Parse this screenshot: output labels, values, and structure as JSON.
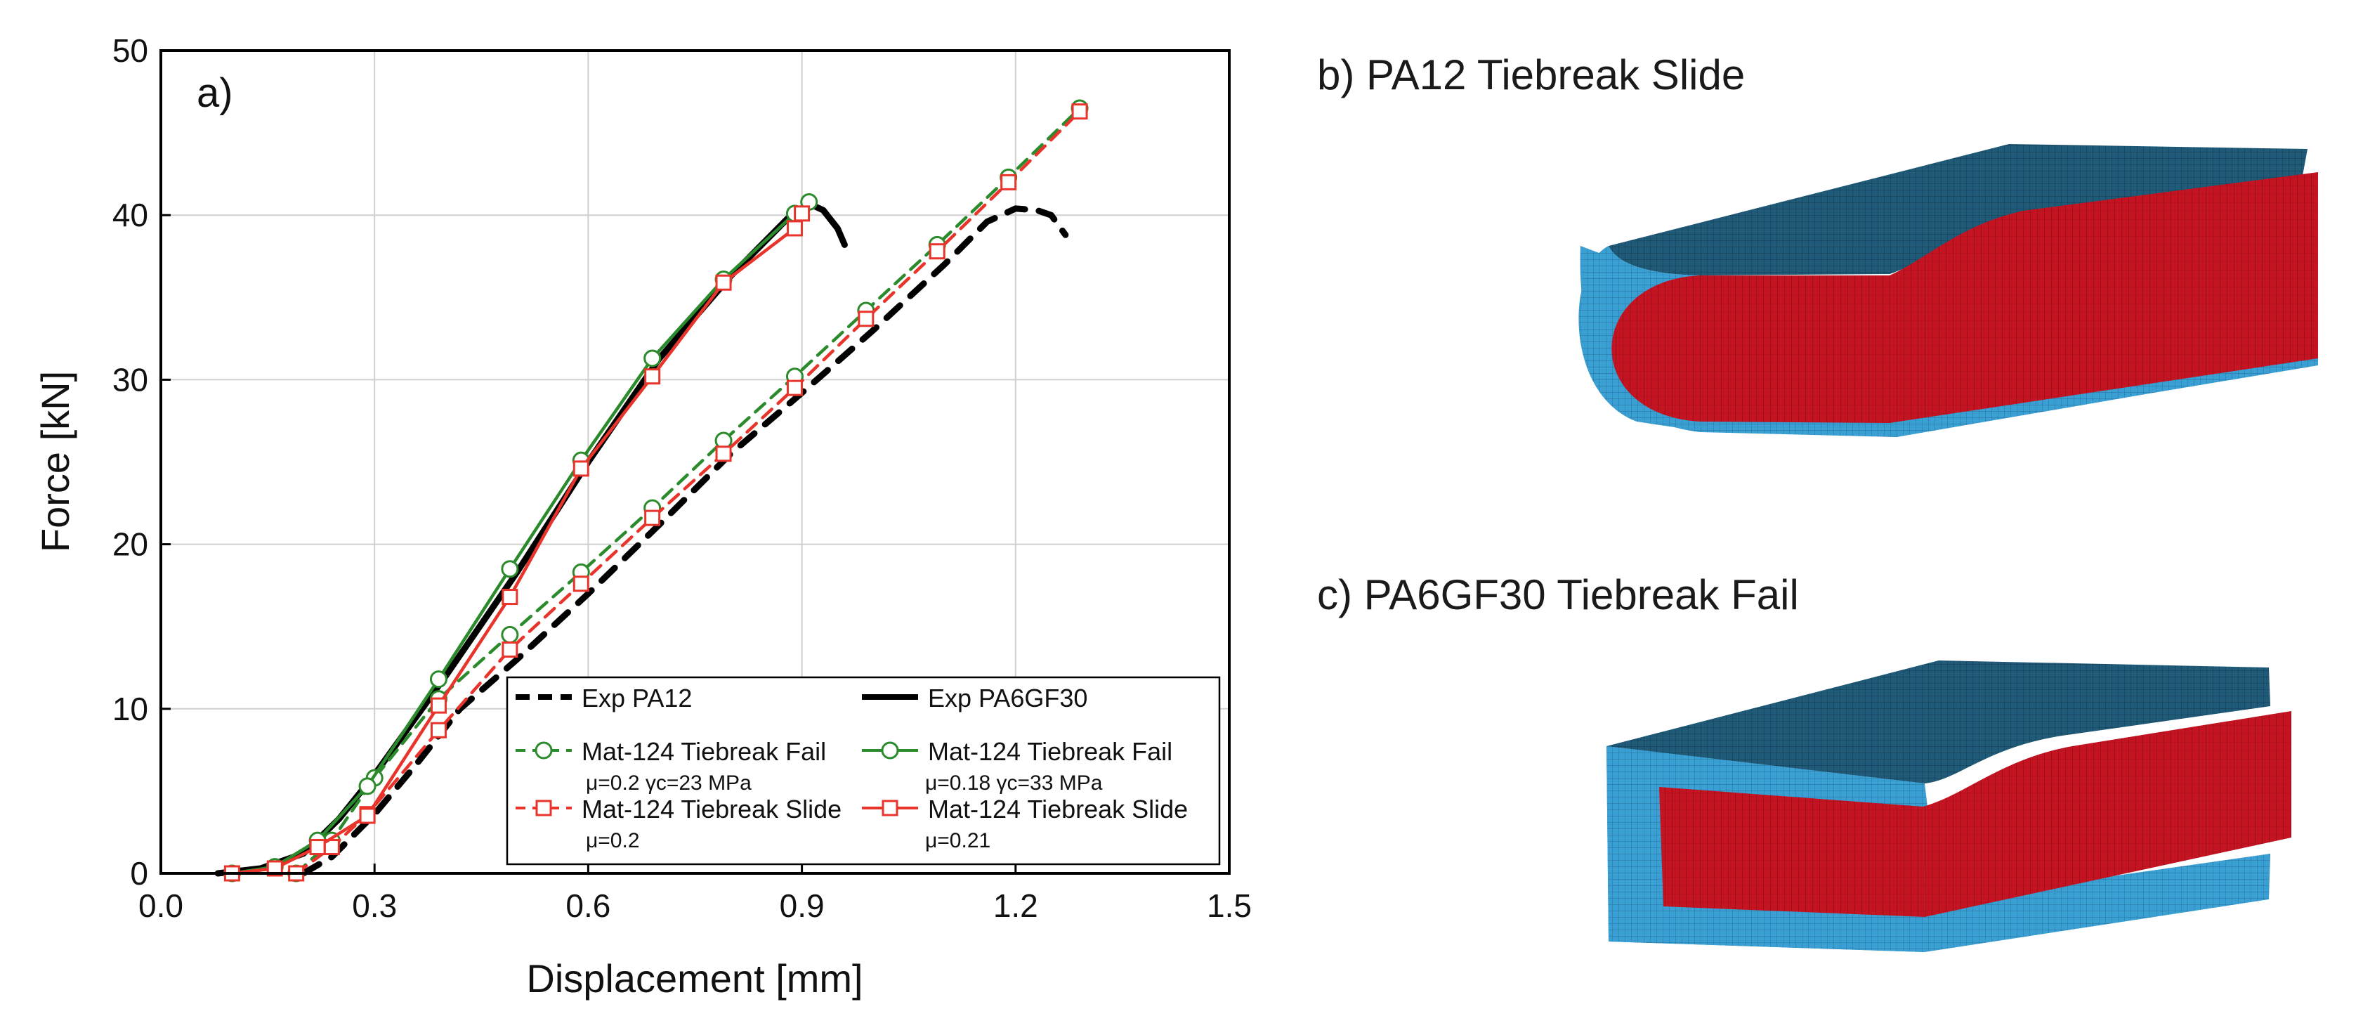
{
  "chart_data": {
    "type": "line",
    "panel_label": "a)",
    "xlabel": "Displacement [mm]",
    "ylabel": "Force [kN]",
    "xlim": [
      0,
      1.5
    ],
    "ylim": [
      0,
      50
    ],
    "xticks": [
      "0.0",
      "0.3",
      "0.6",
      "0.9",
      "1.2",
      "1.5"
    ],
    "yticks": [
      "0",
      "10",
      "20",
      "30",
      "40",
      "50"
    ],
    "grid": true,
    "legend_position": "bottom-right",
    "series": [
      {
        "name": "Exp PA12",
        "legend_sub": "",
        "color": "#000000",
        "style": "dash",
        "marker": "none",
        "x": [
          0.2,
          0.24,
          0.3,
          0.36,
          0.42,
          0.5,
          0.6,
          0.7,
          0.8,
          0.9,
          1.0,
          1.1,
          1.16,
          1.2,
          1.23,
          1.25,
          1.27
        ],
        "y": [
          0,
          1.0,
          3.6,
          6.7,
          10.0,
          13.0,
          17.0,
          21.2,
          25.5,
          29.2,
          33.0,
          37.0,
          39.6,
          40.4,
          40.3,
          40.0,
          38.8
        ]
      },
      {
        "name": "Exp PA6GF30",
        "legend_sub": "",
        "color": "#000000",
        "style": "solid",
        "marker": "none",
        "x": [
          0.08,
          0.14,
          0.2,
          0.25,
          0.3,
          0.4,
          0.5,
          0.6,
          0.7,
          0.8,
          0.88,
          0.91,
          0.93,
          0.95,
          0.96
        ],
        "y": [
          0,
          0.3,
          1.2,
          3.3,
          6.0,
          12.0,
          18.3,
          25.0,
          31.3,
          36.3,
          39.8,
          40.7,
          40.3,
          39.2,
          38.2
        ]
      },
      {
        "name": "Mat-124 Tiebreak Fail",
        "legend_sub": "μ=0.2  γc=23 MPa",
        "color": "#2b8a2b",
        "style": "dash",
        "marker": "circle",
        "x": [
          0.19,
          0.24,
          0.3,
          0.39,
          0.49,
          0.59,
          0.69,
          0.79,
          0.89,
          0.99,
          1.09,
          1.19,
          1.29
        ],
        "y": [
          0,
          2.0,
          5.8,
          10.6,
          14.5,
          18.3,
          22.2,
          26.3,
          30.2,
          34.2,
          38.2,
          42.3,
          46.5
        ]
      },
      {
        "name": "Mat-124 Tiebreak Fail",
        "legend_sub": "μ=0.18  γc=33 MPa",
        "color": "#2b8a2b",
        "style": "solid",
        "marker": "circle",
        "x": [
          0.1,
          0.16,
          0.22,
          0.29,
          0.39,
          0.49,
          0.59,
          0.69,
          0.79,
          0.89,
          0.91
        ],
        "y": [
          0,
          0.4,
          2.0,
          5.3,
          11.8,
          18.5,
          25.1,
          31.3,
          36.1,
          40.1,
          40.8
        ]
      },
      {
        "name": "Mat-124 Tiebreak Slide",
        "legend_sub": "μ=0.2",
        "color": "#e8342a",
        "style": "dash",
        "marker": "square",
        "x": [
          0.19,
          0.24,
          0.29,
          0.39,
          0.49,
          0.59,
          0.69,
          0.79,
          0.89,
          0.99,
          1.09,
          1.19,
          1.29
        ],
        "y": [
          0,
          1.6,
          3.6,
          8.7,
          13.6,
          17.6,
          21.6,
          25.5,
          29.5,
          33.7,
          37.8,
          42.0,
          46.3
        ]
      },
      {
        "name": "Mat-124 Tiebreak Slide",
        "legend_sub": "μ=0.21",
        "color": "#e8342a",
        "style": "solid",
        "marker": "square",
        "x": [
          0.1,
          0.16,
          0.22,
          0.29,
          0.39,
          0.49,
          0.59,
          0.69,
          0.79,
          0.89,
          0.9
        ],
        "y": [
          0,
          0.3,
          1.6,
          3.5,
          10.2,
          16.8,
          24.6,
          30.2,
          35.9,
          39.2,
          40.1
        ]
      }
    ]
  },
  "panels": {
    "b_title": "b) PA12 Tiebreak Slide",
    "c_title": "c) PA6GF30 Tiebreak Fail"
  },
  "colors": {
    "shell_top": "#1f5a78",
    "shell_side": "#3a9fd3",
    "core": "#c41422"
  }
}
